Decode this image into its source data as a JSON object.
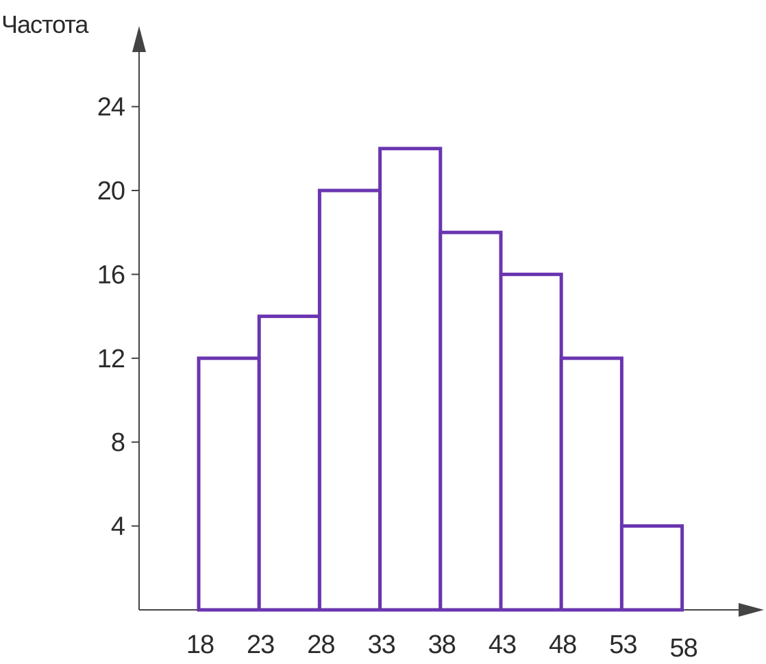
{
  "chart_data": {
    "type": "histogram",
    "ylabel": "Частота",
    "xlabel": "",
    "bin_edges": [
      18,
      23,
      28,
      33,
      38,
      43,
      48,
      53,
      58
    ],
    "bins": [
      {
        "from": 18,
        "to": 23,
        "value": 12
      },
      {
        "from": 23,
        "to": 28,
        "value": 14
      },
      {
        "from": 28,
        "to": 33,
        "value": 20
      },
      {
        "from": 33,
        "to": 38,
        "value": 22
      },
      {
        "from": 38,
        "to": 43,
        "value": 18
      },
      {
        "from": 43,
        "to": 48,
        "value": 16
      },
      {
        "from": 48,
        "to": 53,
        "value": 12
      },
      {
        "from": 53,
        "to": 58,
        "value": 4
      }
    ],
    "y_ticks": [
      4,
      8,
      12,
      16,
      20,
      24
    ],
    "x_tick_labels": [
      "18",
      "23",
      "28",
      "33",
      "38",
      "43",
      "48",
      "53",
      "58"
    ],
    "y_tick_labels": [
      "4",
      "8",
      "12",
      "16",
      "20",
      "24"
    ],
    "grid": false,
    "colors": {
      "bar_stroke": "#6a35b0",
      "axis": "#444444"
    }
  }
}
